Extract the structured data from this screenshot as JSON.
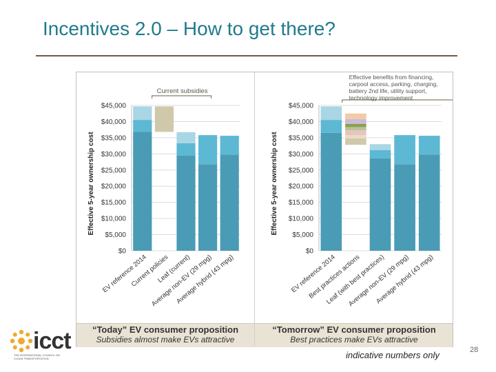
{
  "slide": {
    "title": "Incentives 2.0 – How to get there?",
    "footer_note": "indicative numbers only",
    "page_number": "28",
    "logo_text": "icct",
    "logo_subtitle": "THE INTERNATIONAL COUNCIL ON CLEAN TRANSPORTATION"
  },
  "captions": {
    "left_heading": "“Today” EV consumer proposition",
    "left_subheading": "Subsidies almost make EVs attractive",
    "right_heading": "“Tomorrow” EV consumer proposition",
    "right_subheading": "Best practices make EVs attractive"
  },
  "chart_data": [
    {
      "type": "bar",
      "stacked": true,
      "ylabel": "Effective 5-year ownership cost",
      "ylim": [
        0,
        45000
      ],
      "y_ticks": [
        "$0",
        "$5,000",
        "$10,000",
        "$15,000",
        "$20,000",
        "$25,000",
        "$30,000",
        "$35,000",
        "$40,000",
        "$45,000"
      ],
      "categories": [
        "EV reference 2014",
        "Current policies",
        "Leaf (current)",
        "Average non-EV (29 mpg)",
        "Average hybrid (43 mpg)"
      ],
      "segments": [
        {
          "base": 0,
          "values": [
            36800,
            0,
            29500,
            26800,
            29800
          ],
          "color": "#4a9bb5"
        },
        {
          "base": "stack",
          "values": [
            3700,
            0,
            3800,
            9000,
            5800
          ],
          "color": "#5db8d4"
        },
        {
          "base": "stack",
          "values": [
            4200,
            0,
            3400,
            0,
            0
          ],
          "color": "#a9d6e5"
        }
      ],
      "floating": [
        {
          "category": "Current policies",
          "from": 36800,
          "to": 44700,
          "color": "#d0c8aa"
        }
      ],
      "annotation": "Current subsidies",
      "grid": true
    },
    {
      "type": "bar",
      "stacked": true,
      "ylabel": "Effective 5-year ownership cost",
      "ylim": [
        0,
        45000
      ],
      "y_ticks": [
        "$0",
        "$5,000",
        "$10,000",
        "$15,000",
        "$20,000",
        "$25,000",
        "$30,000",
        "$35,000",
        "$40,000",
        "$45,000"
      ],
      "categories": [
        "EV reference 2014",
        "Best practices actions",
        "Leaf (with best practices)",
        "Average non-EV (29 mpg)",
        "Average hybrid (43 mpg)"
      ],
      "segments": [
        {
          "base": 0,
          "values": [
            36500,
            0,
            28600,
            26800,
            29800
          ],
          "color": "#4a9bb5"
        },
        {
          "base": "stack",
          "values": [
            4000,
            0,
            2600,
            9000,
            5800
          ],
          "color": "#5db8d4"
        },
        {
          "base": "stack",
          "values": [
            4200,
            0,
            1800,
            0,
            0
          ],
          "color": "#a9d6e5"
        }
      ],
      "floating_stack": {
        "category": "Best practices actions",
        "from": 32800,
        "pieces": [
          {
            "value": 2000,
            "color": "#d0c8aa"
          },
          {
            "value": 1000,
            "color": "#e9dcc4"
          },
          {
            "value": 1500,
            "color": "#e8c3c0"
          },
          {
            "value": 1000,
            "color": "#b9c29a"
          },
          {
            "value": 1000,
            "color": "#8aa050"
          },
          {
            "value": 1500,
            "color": "#c9bcd8"
          },
          {
            "value": 1700,
            "color": "#f3c9a8"
          }
        ]
      },
      "annotation": "Effective benefits from financing, carpool access, parking, charging, battery 2nd life, utility support, technology improvement",
      "grid": true
    }
  ]
}
